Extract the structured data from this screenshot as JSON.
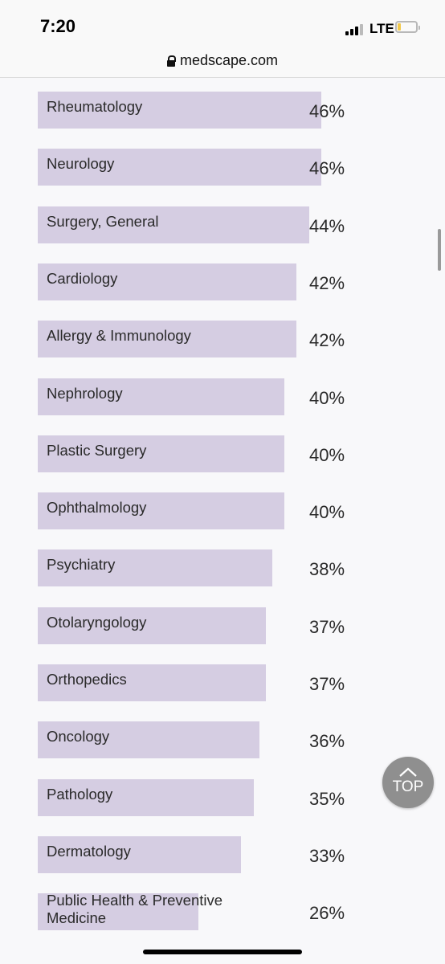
{
  "status_bar": {
    "time": "7:20",
    "network": "LTE",
    "battery_level": 0.2
  },
  "browser": {
    "url": "medscape.com"
  },
  "chart_data": {
    "type": "bar",
    "categories": [
      "Rheumatology",
      "Neurology",
      "Surgery, General",
      "Cardiology",
      "Allergy & Immunology",
      "Nephrology",
      "Plastic Surgery",
      "Ophthalmology",
      "Psychiatry",
      "Otolaryngology",
      "Orthopedics",
      "Oncology",
      "Pathology",
      "Dermatology",
      "Public Health & Preventive Medicine"
    ],
    "values": [
      46,
      46,
      44,
      42,
      42,
      40,
      40,
      40,
      38,
      37,
      37,
      36,
      35,
      33,
      26
    ],
    "value_labels": [
      "46%",
      "46%",
      "44%",
      "42%",
      "42%",
      "40%",
      "40%",
      "40%",
      "38%",
      "37%",
      "37%",
      "36%",
      "35%",
      "33%",
      "26%"
    ],
    "bar_color": "#d5cde2",
    "xlim": [
      0,
      52
    ]
  },
  "top_button": {
    "label": "TOP",
    "icon": "chevron-up-icon"
  }
}
